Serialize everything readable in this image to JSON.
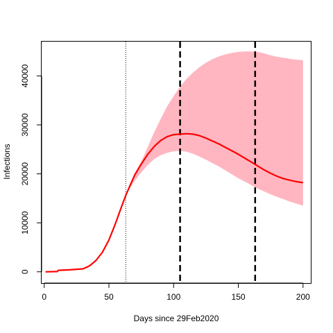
{
  "chart_data": {
    "type": "line",
    "title": "",
    "xlabel": "Days since 29Feb2020",
    "ylabel": "Infections",
    "xlim": [
      -2,
      206
    ],
    "ylim": [
      -2300,
      47000
    ],
    "x_ticks": [
      0,
      50,
      100,
      150,
      200
    ],
    "x_tick_labels": [
      "0",
      "50",
      "100",
      "150",
      "200"
    ],
    "y_ticks": [
      0,
      10000,
      20000,
      30000,
      40000
    ],
    "y_tick_labels": [
      "0",
      "10000",
      "20000",
      "30000",
      "40000"
    ],
    "grid": false,
    "legend": "none",
    "series": [
      {
        "role": "central-estimate",
        "color": "#ff0000",
        "x": [
          1,
          10,
          11,
          20,
          30,
          35,
          40,
          45,
          50,
          55,
          60,
          63,
          66,
          70,
          75,
          80,
          85,
          90,
          95,
          100,
          105,
          110,
          115,
          120,
          125,
          130,
          135,
          140,
          145,
          150,
          155,
          160,
          165,
          170,
          175,
          180,
          185,
          190,
          195,
          200
        ],
        "y": [
          0,
          50,
          300,
          400,
          600,
          1200,
          2300,
          4000,
          6500,
          9800,
          13500,
          15600,
          17400,
          19800,
          22000,
          24000,
          25600,
          26800,
          27600,
          28000,
          28100,
          28200,
          28100,
          27800,
          27300,
          26700,
          26100,
          25400,
          24700,
          24000,
          23200,
          22400,
          21600,
          20800,
          20100,
          19500,
          19000,
          18700,
          18400,
          18200
        ]
      }
    ],
    "band": {
      "role": "uncertainty-interval",
      "color": "#ffb6c1",
      "x": [
        63,
        66,
        70,
        75,
        80,
        85,
        90,
        95,
        100,
        105,
        110,
        115,
        120,
        125,
        130,
        135,
        140,
        145,
        150,
        155,
        160,
        165,
        170,
        175,
        180,
        185,
        190,
        195,
        200
      ],
      "lower": [
        15400,
        17000,
        18600,
        20300,
        21800,
        23000,
        23800,
        24300,
        24600,
        24700,
        24500,
        24100,
        23500,
        22900,
        22200,
        21500,
        20700,
        19900,
        19100,
        18400,
        17700,
        17000,
        16400,
        15800,
        15300,
        14800,
        14300,
        13900,
        13500
      ],
      "upper": [
        15800,
        17800,
        20000,
        22500,
        25500,
        28500,
        31200,
        33800,
        35900,
        37800,
        39400,
        40700,
        41800,
        42700,
        43400,
        44000,
        44400,
        44700,
        44900,
        45000,
        45000,
        44900,
        44600,
        44200,
        43900,
        43700,
        43500,
        43300,
        43200
      ]
    },
    "vertical_lines": [
      {
        "x": 63,
        "style": "dotted",
        "color": "#000000"
      },
      {
        "x": 105,
        "style": "dashed",
        "color": "#000000"
      },
      {
        "x": 163,
        "style": "dashed",
        "color": "#000000"
      }
    ]
  }
}
